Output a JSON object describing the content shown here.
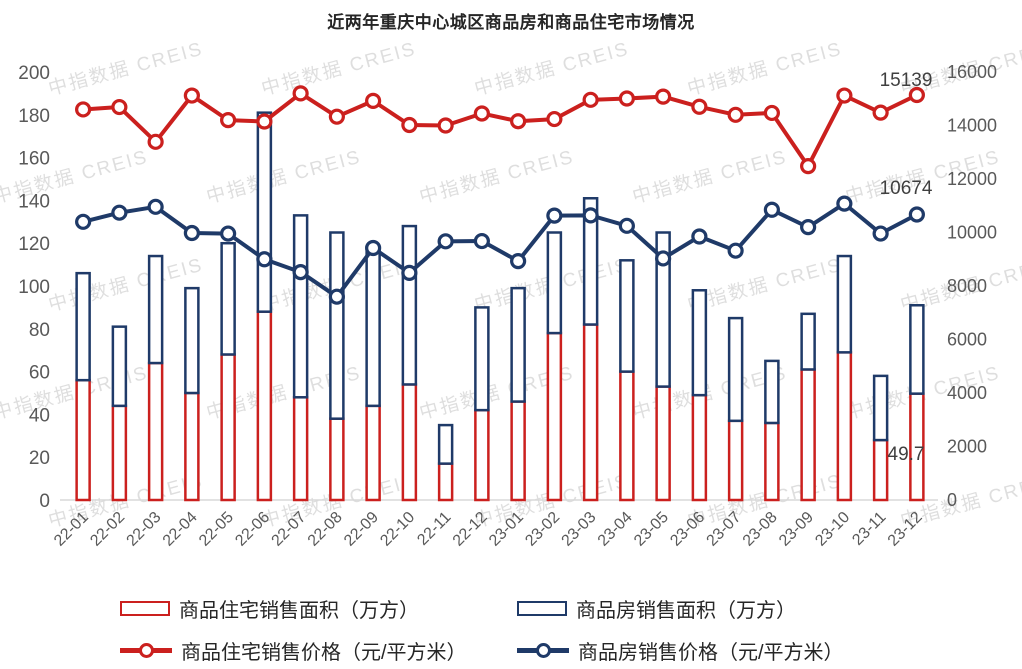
{
  "title": "近两年重庆中心城区商品房和商品住宅市场情况",
  "watermark_text": "中指数据 CREIS",
  "colors": {
    "red": "#CB201E",
    "blue": "#1F3A68",
    "axis_text": "#595959",
    "end_label_text": "#3F3F3F",
    "baseline": "#D9D9D9"
  },
  "chart_data": {
    "type": "bar",
    "subtype": "combo-bar-line-dual-axis",
    "categories": [
      "22-01",
      "22-02",
      "22-03",
      "22-04",
      "22-05",
      "22-06",
      "22-07",
      "22-08",
      "22-09",
      "22-10",
      "22-11",
      "22-12",
      "23-01",
      "23-02",
      "23-03",
      "23-04",
      "23-05",
      "23-06",
      "23-07",
      "23-08",
      "23-09",
      "23-10",
      "23-11",
      "23-12"
    ],
    "left_axis": {
      "min": 0,
      "max": 200,
      "step": 20,
      "ticks": [
        0,
        20,
        40,
        60,
        80,
        100,
        120,
        140,
        160,
        180,
        200
      ]
    },
    "right_axis": {
      "min": 0,
      "max": 16000,
      "step": 2000,
      "ticks": [
        0,
        2000,
        4000,
        6000,
        8000,
        10000,
        12000,
        14000,
        16000
      ]
    },
    "grid": "off",
    "legend_position": "bottom",
    "series": [
      {
        "name": "商品住宅销售面积（万方）",
        "type": "bar",
        "axis": "left",
        "color": "#CB201E",
        "values": [
          56,
          44,
          64,
          50,
          68,
          88,
          48,
          38,
          44,
          54,
          17,
          42,
          46,
          78,
          82,
          60,
          53,
          49,
          37,
          36,
          61,
          69,
          28,
          49.7
        ]
      },
      {
        "name": "商品房销售面积（万方）",
        "type": "bar",
        "axis": "left",
        "color": "#1F3A68",
        "note": "total; drawn stacked above residential segment",
        "values": [
          106,
          81,
          114,
          99,
          120,
          181,
          133,
          125,
          118,
          128,
          35,
          90,
          99,
          125,
          141,
          112,
          125,
          98,
          85,
          65,
          87,
          114,
          58,
          91
        ]
      },
      {
        "name": "商品住宅销售价格（元/平方米）",
        "type": "line",
        "axis": "right",
        "color": "#CB201E",
        "values": [
          14600,
          14690,
          13390,
          15120,
          14200,
          14150,
          15200,
          14330,
          14920,
          14020,
          14000,
          14450,
          14160,
          14240,
          14960,
          15010,
          15080,
          14700,
          14400,
          14470,
          12480,
          15120,
          14480,
          15139
        ]
      },
      {
        "name": "商品房销售价格（元/平方米）",
        "type": "line",
        "axis": "right",
        "color": "#1F3A68",
        "values": [
          10400,
          10740,
          10960,
          9980,
          9960,
          9000,
          8520,
          7600,
          9420,
          8490,
          9670,
          9680,
          8930,
          10630,
          10640,
          10250,
          9030,
          9850,
          9320,
          10850,
          10200,
          11080,
          9960,
          10674
        ]
      }
    ],
    "end_labels": [
      {
        "text": "15139",
        "series": "商品住宅销售价格"
      },
      {
        "text": "10674",
        "series": "商品房销售价格"
      },
      {
        "text": "49.7",
        "series": "商品住宅销售面积"
      }
    ]
  }
}
